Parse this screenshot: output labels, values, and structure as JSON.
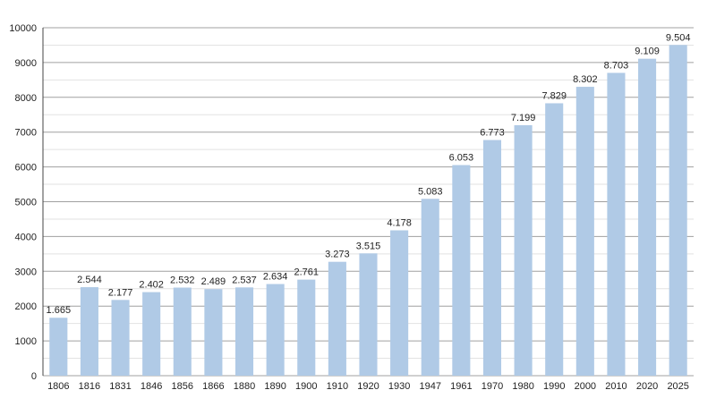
{
  "chart_data": {
    "type": "bar",
    "categories": [
      "1806",
      "1816",
      "1831",
      "1846",
      "1856",
      "1866",
      "1880",
      "1890",
      "1900",
      "1910",
      "1920",
      "1930",
      "1947",
      "1961",
      "1970",
      "1980",
      "1990",
      "2000",
      "2010",
      "2020",
      "2025"
    ],
    "values": [
      1665,
      2544,
      2177,
      2402,
      2532,
      2489,
      2537,
      2634,
      2761,
      3273,
      3515,
      4178,
      5083,
      6053,
      6773,
      7199,
      7829,
      8302,
      8703,
      9109,
      9504
    ],
    "value_labels": [
      "1.665",
      "2.544",
      "2.177",
      "2.402",
      "2.532",
      "2.489",
      "2.537",
      "2.634",
      "2.761",
      "3.273",
      "3.515",
      "4.178",
      "5.083",
      "6.053",
      "6.773",
      "7.199",
      "7.829",
      "8.302",
      "8.703",
      "9.109",
      "9.504"
    ],
    "y_ticks": [
      "0",
      "1000",
      "2000",
      "3000",
      "4000",
      "5000",
      "6000",
      "7000",
      "8000",
      "9000",
      "10000"
    ],
    "ylim": [
      0,
      10000
    ],
    "grid": true,
    "legend": "none",
    "bar_color": "#b0cae6",
    "grid_color": "#a0a0a0",
    "minor_grid_color": "#e2e2e2"
  }
}
